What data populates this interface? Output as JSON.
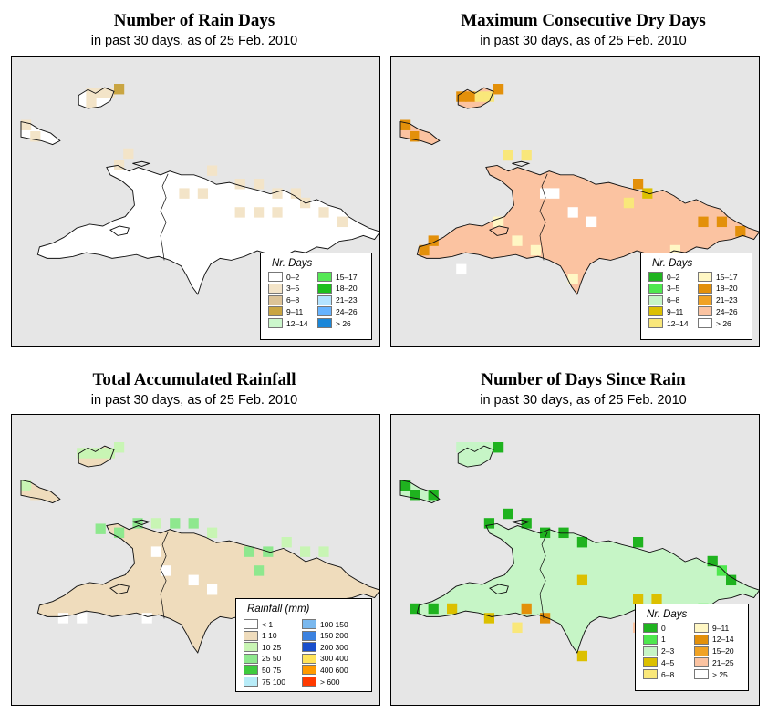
{
  "subtitle": "in past 30 days, as of  25 Feb. 2010",
  "panels": [
    {
      "id": "rain-days",
      "title": "Number of Rain Days",
      "legend_title": "Nr. Days",
      "legend": [
        {
          "label": "0–2",
          "color": "#ffffff"
        },
        {
          "label": "3–5",
          "color": "#f3e4c8"
        },
        {
          "label": "6–8",
          "color": "#dcc397"
        },
        {
          "label": "9–11",
          "color": "#c9a542"
        },
        {
          "label": "12–14",
          "color": "#ccf7cc"
        },
        {
          "label": "15–17",
          "color": "#55e855"
        },
        {
          "label": "18–20",
          "color": "#1cbf1c"
        },
        {
          "label": "21–23",
          "color": "#b3e3ff"
        },
        {
          "label": "24–26",
          "color": "#66b3ff"
        },
        {
          "label": "> 26",
          "color": "#1a87d9"
        }
      ]
    },
    {
      "id": "dry-days",
      "title": "Maximum Consecutive Dry Days",
      "legend_title": "Nr. Days",
      "legend": [
        {
          "label": "0–2",
          "color": "#1fb31f"
        },
        {
          "label": "3–5",
          "color": "#4ee84e"
        },
        {
          "label": "6–8",
          "color": "#c6f5c6"
        },
        {
          "label": "9–11",
          "color": "#dcc000"
        },
        {
          "label": "12–14",
          "color": "#f9e77a"
        },
        {
          "label": "15–17",
          "color": "#fff7c4"
        },
        {
          "label": "18–20",
          "color": "#e3900a"
        },
        {
          "label": "21–23",
          "color": "#f0a224"
        },
        {
          "label": "24–26",
          "color": "#fbc3a1"
        },
        {
          "label": "> 26",
          "color": "#ffffff"
        }
      ]
    },
    {
      "id": "total-rainfall",
      "title": "Total Accumulated Rainfall",
      "legend_title": "Rainfall (mm)",
      "legend": [
        {
          "label": "< 1",
          "color": "#ffffff"
        },
        {
          "label": "1   10",
          "color": "#efdcbc"
        },
        {
          "label": "10   25",
          "color": "#c8f5b4"
        },
        {
          "label": "25   50",
          "color": "#8ee88e"
        },
        {
          "label": "50   75",
          "color": "#3ecb3e"
        },
        {
          "label": "75   100",
          "color": "#b8ecf8"
        },
        {
          "label": "100   150",
          "color": "#7ab8ee"
        },
        {
          "label": "150   200",
          "color": "#3c82e0"
        },
        {
          "label": "200   300",
          "color": "#1a4fcc"
        },
        {
          "label": "300   400",
          "color": "#ffe45a"
        },
        {
          "label": "400   600",
          "color": "#ff9a00"
        },
        {
          "label": "> 600",
          "color": "#ff3a00"
        }
      ]
    },
    {
      "id": "days-since-rain",
      "title": "Number of Days Since Rain",
      "legend_title": "Nr. Days",
      "legend": [
        {
          "label": "0",
          "color": "#1fb31f"
        },
        {
          "label": "1",
          "color": "#4ee84e"
        },
        {
          "label": "2–3",
          "color": "#c6f5c6"
        },
        {
          "label": "4–5",
          "color": "#dcc000"
        },
        {
          "label": "6–8",
          "color": "#f9e77a"
        },
        {
          "label": "9–11",
          "color": "#fff7c4"
        },
        {
          "label": "12–14",
          "color": "#e3900a"
        },
        {
          "label": "15–20",
          "color": "#f0a224"
        },
        {
          "label": "21–25",
          "color": "#fbc3a1"
        },
        {
          "label": "> 25",
          "color": "#ffffff"
        }
      ]
    }
  ]
}
